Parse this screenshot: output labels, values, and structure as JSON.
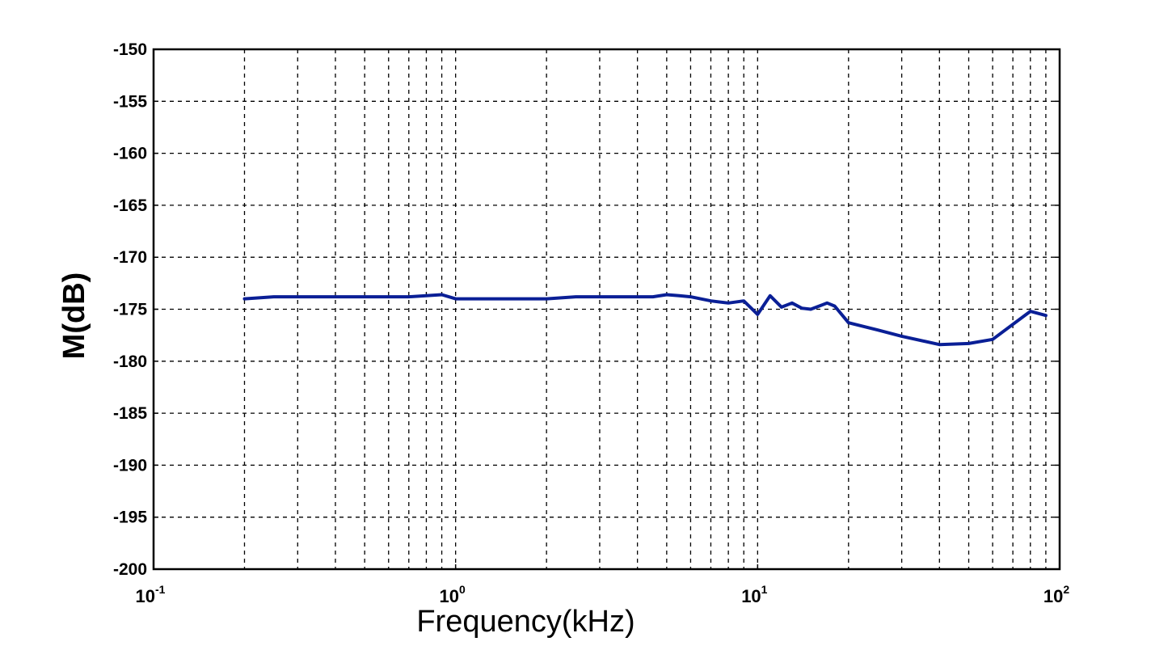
{
  "chart_data": {
    "type": "line",
    "xlabel": "Frequency(kHz)",
    "ylabel": "M(dB)",
    "xscale": "log",
    "xlim": [
      0.1,
      100
    ],
    "ylim": [
      -200,
      -150
    ],
    "x_ticks": [
      {
        "base": "10",
        "exp": "-1",
        "value": 0.1
      },
      {
        "base": "10",
        "exp": "0",
        "value": 1
      },
      {
        "base": "10",
        "exp": "1",
        "value": 10
      },
      {
        "base": "10",
        "exp": "2",
        "value": 100
      }
    ],
    "y_ticks": [
      {
        "label": "-150",
        "value": -150
      },
      {
        "label": "-155",
        "value": -155
      },
      {
        "label": "-160",
        "value": -160
      },
      {
        "label": "-165",
        "value": -165
      },
      {
        "label": "-170",
        "value": -170
      },
      {
        "label": "-175",
        "value": -175
      },
      {
        "label": "-180",
        "value": -180
      },
      {
        "label": "-185",
        "value": -185
      },
      {
        "label": "-190",
        "value": -190
      },
      {
        "label": "-195",
        "value": -195
      },
      {
        "label": "-200",
        "value": -200
      }
    ],
    "grid": true,
    "grid_style": "dashed",
    "legend": "none",
    "series": [
      {
        "color": "#0a1f96",
        "x": [
          0.2,
          0.25,
          0.5,
          0.7,
          0.9,
          1.0,
          2.0,
          2.5,
          4.5,
          5.0,
          5.5,
          6.0,
          7.0,
          8.0,
          9.0,
          10.0,
          11.0,
          12.0,
          13.0,
          14.0,
          15.0,
          17.0,
          18.0,
          20.0,
          25.0,
          30.0,
          40.0,
          50.0,
          60.0,
          80.0,
          90.0
        ],
        "y": [
          -174.0,
          -173.8,
          -173.8,
          -173.8,
          -173.6,
          -174.0,
          -174.0,
          -173.8,
          -173.8,
          -173.6,
          -173.7,
          -173.8,
          -174.2,
          -174.4,
          -174.2,
          -175.5,
          -173.7,
          -174.8,
          -174.4,
          -174.9,
          -175.0,
          -174.4,
          -174.7,
          -176.3,
          -177.0,
          -177.6,
          -178.4,
          -178.3,
          -177.9,
          -175.2,
          -175.6
        ]
      }
    ]
  }
}
